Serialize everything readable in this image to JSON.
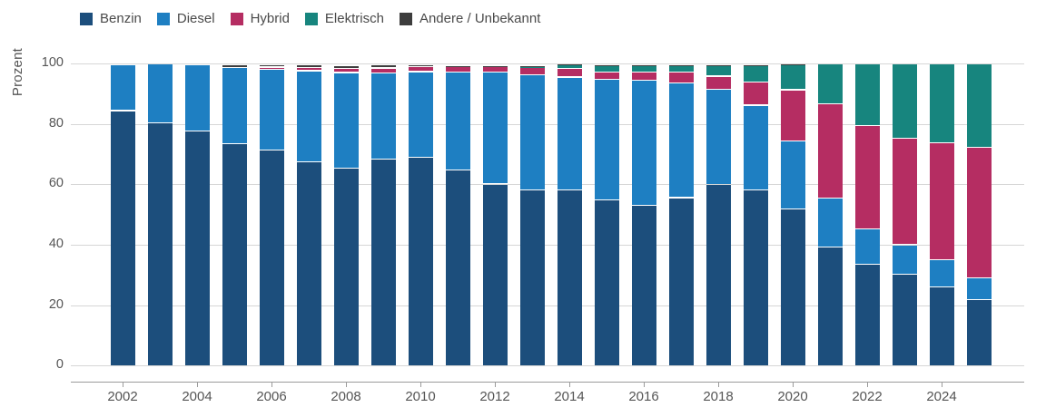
{
  "y_axis": {
    "title": "Prozent",
    "tick_labels": [
      "0",
      "20",
      "40",
      "60",
      "80",
      "100"
    ]
  },
  "x_axis": {
    "tick_labels": [
      "2002",
      "2004",
      "2006",
      "2008",
      "2010",
      "2012",
      "2014",
      "2016",
      "2018",
      "2020",
      "2022",
      "2024"
    ]
  },
  "legend": {
    "labels": [
      "Benzin",
      "Diesel",
      "Hybrid",
      "Elektrisch",
      "Andere / Unbekannt"
    ]
  },
  "colors": {
    "benzin": "#1c4e7c",
    "diesel": "#1e7fc2",
    "hybrid": "#b52d62",
    "elektrisch": "#17857e",
    "andere": "#3d3d3d",
    "grid": "#d6d6d6",
    "axis": "#9b9b9b",
    "text": "#555555"
  },
  "chart_data": {
    "type": "bar",
    "stacked": true,
    "percent": true,
    "title": "",
    "xlabel": "",
    "ylabel": "Prozent",
    "ylim": [
      0,
      100
    ],
    "yticks": [
      0,
      20,
      40,
      60,
      80,
      100
    ],
    "grid": true,
    "legend_position": "top-left",
    "categories": [
      2002,
      2003,
      2004,
      2005,
      2006,
      2007,
      2008,
      2009,
      2010,
      2011,
      2012,
      2013,
      2014,
      2015,
      2016,
      2017,
      2018,
      2019,
      2020,
      2021,
      2022,
      2023,
      2024,
      2025
    ],
    "x_tick_years": [
      2002,
      2004,
      2006,
      2008,
      2010,
      2012,
      2014,
      2016,
      2018,
      2020,
      2022,
      2024
    ],
    "series": [
      {
        "name": "Benzin",
        "color": "#1c4e7c",
        "values": [
          84.4,
          80.4,
          77.7,
          73.6,
          71.3,
          67.5,
          65.5,
          68.3,
          68.9,
          64.7,
          60.1,
          58.1,
          58.3,
          54.8,
          53.1,
          55.6,
          60.0,
          58.3,
          51.8,
          39.2,
          33.5,
          30.2,
          26.0,
          21.8
        ]
      },
      {
        "name": "Diesel",
        "color": "#1e7fc2",
        "values": [
          15.2,
          19.4,
          21.8,
          25.2,
          26.9,
          30.1,
          31.5,
          28.7,
          28.4,
          32.5,
          37.0,
          38.2,
          37.2,
          39.9,
          41.4,
          37.9,
          31.5,
          27.9,
          22.6,
          16.3,
          11.9,
          9.8,
          9.0,
          7.2
        ]
      },
      {
        "name": "Hybrid",
        "color": "#b52d62",
        "values": [
          0,
          0,
          0,
          0,
          0.6,
          1.0,
          1.4,
          1.5,
          1.6,
          1.8,
          2.0,
          2.4,
          2.9,
          2.5,
          2.7,
          3.7,
          4.3,
          7.7,
          16.9,
          31.1,
          34.2,
          35.2,
          38.8,
          43.3
        ]
      },
      {
        "name": "Elektrisch",
        "color": "#17857e",
        "values": [
          0,
          0,
          0,
          0,
          0,
          0,
          0,
          0,
          0,
          0,
          0,
          0.4,
          1.1,
          2.0,
          2.1,
          2.2,
          3.5,
          5.5,
          8.3,
          13.4,
          20.4,
          24.8,
          26.2,
          27.7
        ]
      },
      {
        "name": "Andere / Unbekannt",
        "color": "#3d3d3d",
        "values": [
          0,
          0,
          0,
          0.9,
          0.8,
          1.0,
          1.0,
          1.0,
          0.6,
          0.4,
          0.3,
          0.3,
          0.3,
          0.3,
          0.2,
          0.3,
          0.3,
          0.3,
          0.2,
          0,
          0,
          0,
          0,
          0
        ]
      }
    ]
  }
}
